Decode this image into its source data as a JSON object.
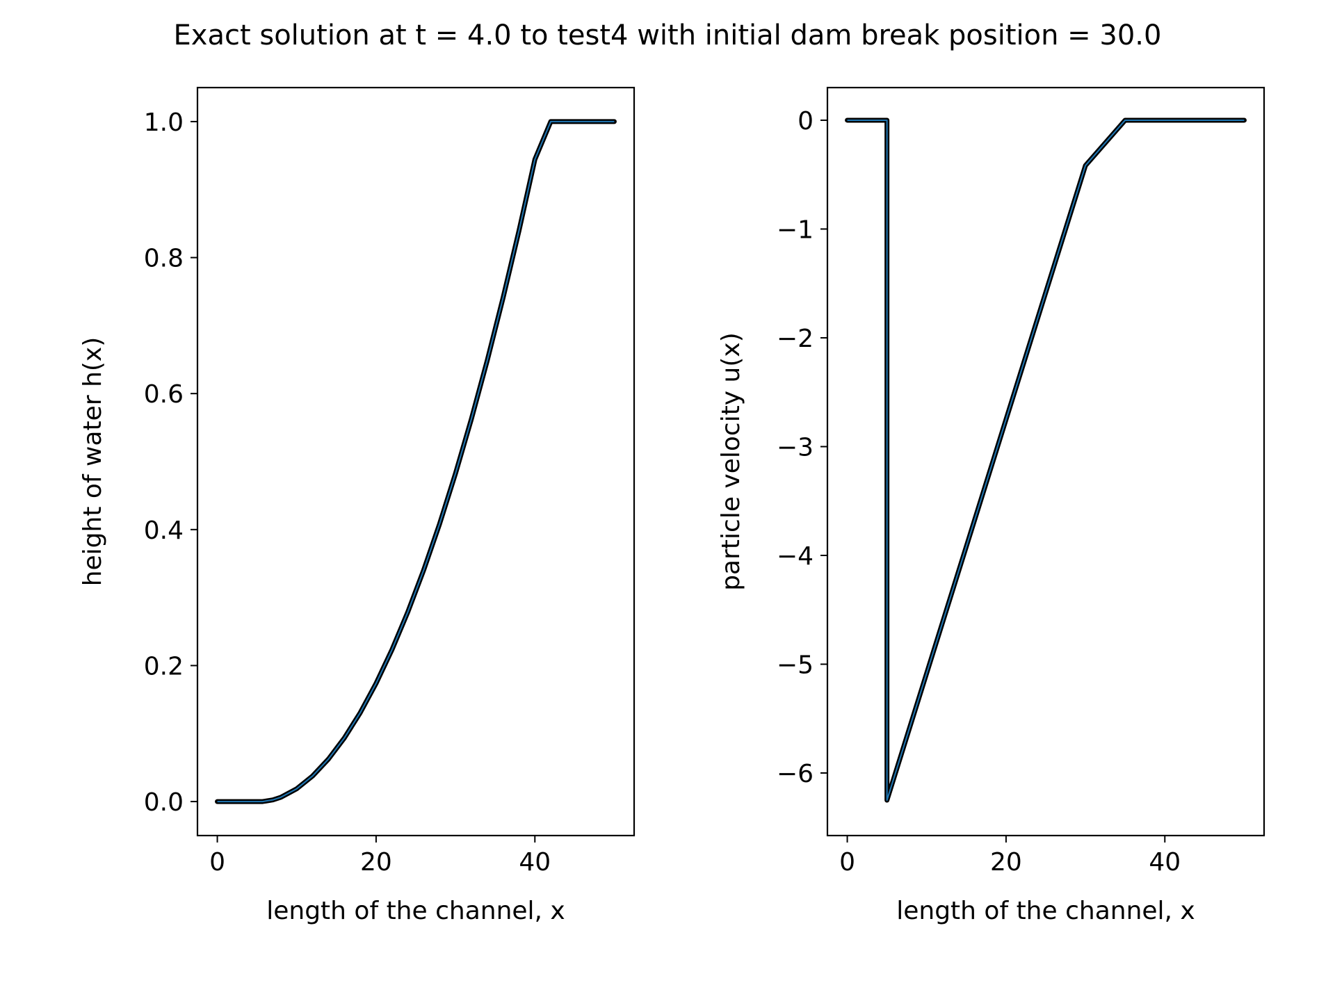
{
  "figure": {
    "title": "Exact solution at t = 4.0 to test4 with initial dam break position = 30.0"
  },
  "chart_data": [
    {
      "type": "line",
      "xlabel": "length of the channel, x",
      "ylabel": "height of water h(x)",
      "xlim": [
        -2.5,
        52.5
      ],
      "ylim": [
        -0.05,
        1.05
      ],
      "xticks": [
        0,
        20,
        40
      ],
      "xtick_labels": [
        "0",
        "20",
        "40"
      ],
      "yticks": [
        0.0,
        0.2,
        0.4,
        0.6,
        0.8,
        1.0
      ],
      "ytick_labels": [
        "0.0",
        "0.2",
        "0.4",
        "0.6",
        "0.8",
        "1.0"
      ],
      "grid": false,
      "legend": "none",
      "series": [
        {
          "color": "#1f77b4",
          "marker_color": "#000000",
          "x": [
            0,
            2,
            4,
            5.7,
            7,
            8,
            10,
            12,
            14,
            16,
            18,
            20,
            22,
            24,
            26,
            28,
            30,
            32,
            34,
            36,
            38,
            40,
            42,
            42.6,
            44,
            46,
            48,
            50
          ],
          "y": [
            0,
            0,
            0,
            0,
            0.0025,
            0.0063,
            0.0188,
            0.0376,
            0.0625,
            0.0935,
            0.1306,
            0.1739,
            0.2233,
            0.2789,
            0.3406,
            0.4084,
            0.4824,
            0.5625,
            0.6487,
            0.7411,
            0.8396,
            0.9443,
            1.0,
            1.0,
            1.0,
            1.0,
            1.0,
            1.0
          ]
        }
      ]
    },
    {
      "type": "line",
      "xlabel": "length of the channel, x",
      "ylabel": "particle velocity u(x)",
      "xlim": [
        -2.5,
        52.5
      ],
      "ylim": [
        -6.575,
        0.3
      ],
      "xticks": [
        0,
        20,
        40
      ],
      "xtick_labels": [
        "0",
        "20",
        "40"
      ],
      "yticks": [
        0,
        -1,
        -2,
        -3,
        -4,
        -5,
        -6
      ],
      "ytick_labels": [
        "0",
        "−1",
        "−2",
        "−3",
        "−4",
        "−5",
        "−6"
      ],
      "grid": false,
      "legend": "none",
      "series": [
        {
          "color": "#1f77b4",
          "marker_color": "#000000",
          "x": [
            0,
            2,
            4,
            5.0,
            5.0,
            10,
            15,
            20,
            25,
            30,
            35,
            40,
            42.5,
            44,
            46,
            48,
            50
          ],
          "y": [
            0,
            0,
            0,
            0,
            -6.25,
            -5.083,
            -3.917,
            -2.75,
            -1.583,
            -0.417,
            0.0,
            0.0,
            0.0,
            0.0,
            0.0,
            0.0,
            0.0
          ]
        }
      ]
    }
  ]
}
